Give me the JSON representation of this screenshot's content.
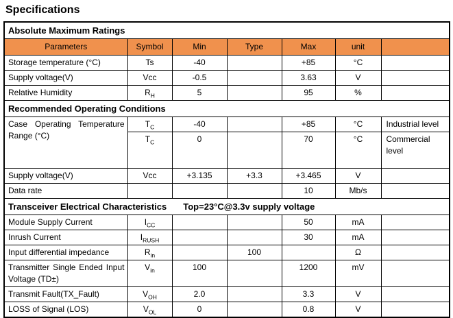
{
  "page_title": "Specifications",
  "colors": {
    "header_bg": "#F0914D",
    "border": "#000000"
  },
  "table": {
    "header": {
      "parameters": "Parameters",
      "symbol": "Symbol",
      "min": "Min",
      "type": "Type",
      "max": "Max",
      "unit": "unit",
      "extra": ""
    },
    "sections": {
      "abs": {
        "title": "Absolute Maximum Ratings"
      },
      "rec": {
        "title": "Recommended Operating Conditions"
      },
      "trx": {
        "title": "Transceiver Electrical Characteristics",
        "subtitle": "Top=23°C@3.3v supply voltage"
      }
    },
    "rows": {
      "storage_temp": {
        "param": "Storage temperature (°C)",
        "sym": "Ts",
        "sym_sub": "",
        "min": "-40",
        "typ": "",
        "max": "+85",
        "unit": "°C",
        "note": ""
      },
      "supply_voltage_abs": {
        "param": "Supply voltage(V)",
        "sym": "Vcc",
        "sym_sub": "",
        "min": "-0.5",
        "typ": "",
        "max": "3.63",
        "unit": "V",
        "note": ""
      },
      "relative_humidity": {
        "param": "Relative Humidity",
        "sym": "R",
        "sym_sub": "H",
        "min": "5",
        "typ": "",
        "max": "95",
        "unit": "%",
        "note": ""
      },
      "case_temp_industrial": {
        "param": "Case Operating Temperature Range (°C)",
        "sym": "T",
        "sym_sub": "C",
        "min": "-40",
        "typ": "",
        "max": "+85",
        "unit": "°C",
        "note": "Industrial level"
      },
      "case_temp_commercial": {
        "param": "",
        "sym": "T",
        "sym_sub": "C",
        "min": "0",
        "typ": "",
        "max": "70",
        "unit": "°C",
        "note": "Commercial level"
      },
      "supply_voltage_rec": {
        "param": "Supply voltage(V)",
        "sym": "Vcc",
        "sym_sub": "",
        "min": "+3.135",
        "typ": "+3.3",
        "max": "+3.465",
        "unit": "V",
        "note": ""
      },
      "data_rate": {
        "param": "Data rate",
        "sym": "",
        "sym_sub": "",
        "min": "",
        "typ": "",
        "max": "10",
        "unit": "Mb/s",
        "note": ""
      },
      "module_supply_current": {
        "param": "Module Supply Current",
        "sym": "I",
        "sym_sub": "CC",
        "min": "",
        "typ": "",
        "max": "50",
        "unit": "mA",
        "note": ""
      },
      "inrush_current": {
        "param": "Inrush Current",
        "sym": "I",
        "sym_sub": "RUSH",
        "min": "",
        "typ": "",
        "max": "30",
        "unit": "mA",
        "note": ""
      },
      "input_diff_impedance": {
        "param": "Input differential impedance",
        "sym": "R",
        "sym_sub": "in",
        "min": "",
        "typ": "100",
        "max": "",
        "unit": "Ω",
        "note": ""
      },
      "transmitter_input_voltage": {
        "param": "Transmitter Single Ended Input Voltage (TD±)",
        "sym": "V",
        "sym_sub": "in",
        "min": "100",
        "typ": "",
        "max": "1200",
        "unit": "mV",
        "note": ""
      },
      "transmit_fault": {
        "param": "Transmit Fault(TX_Fault)",
        "sym": "V",
        "sym_sub": "OH",
        "min": "2.0",
        "typ": "",
        "max": "3.3",
        "unit": "V",
        "note": ""
      },
      "loss_of_signal": {
        "param": "LOSS of Signal (LOS)",
        "sym": "V",
        "sym_sub": "OL",
        "min": "0",
        "typ": "",
        "max": "0.8",
        "unit": "V",
        "note": ""
      }
    }
  }
}
